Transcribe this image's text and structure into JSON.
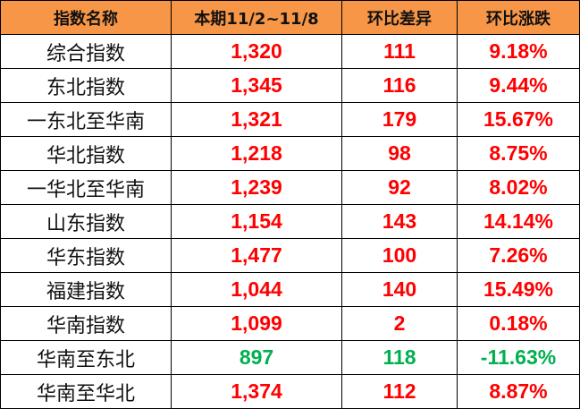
{
  "headers": [
    "指数名称",
    "本期11/2~11/8",
    "环比差异",
    "环比涨跌"
  ],
  "colors": {
    "header_bg": "#F79646",
    "up": "#FF0000",
    "down": "#00B050"
  },
  "rows": [
    {
      "name": "综合指数",
      "value": "1,320",
      "diff": "111",
      "pct": "9.18%",
      "trend": "up"
    },
    {
      "name": "东北指数",
      "value": "1,345",
      "diff": "116",
      "pct": "9.44%",
      "trend": "up"
    },
    {
      "name": "一东北至华南",
      "value": "1,321",
      "diff": "179",
      "pct": "15.67%",
      "trend": "up"
    },
    {
      "name": "华北指数",
      "value": "1,218",
      "diff": "98",
      "pct": "8.75%",
      "trend": "up"
    },
    {
      "name": "一华北至华南",
      "value": "1,239",
      "diff": "92",
      "pct": "8.02%",
      "trend": "up"
    },
    {
      "name": "山东指数",
      "value": "1,154",
      "diff": "143",
      "pct": "14.14%",
      "trend": "up"
    },
    {
      "name": "华东指数",
      "value": "1,477",
      "diff": "100",
      "pct": "7.26%",
      "trend": "up"
    },
    {
      "name": "福建指数",
      "value": "1,044",
      "diff": "140",
      "pct": "15.49%",
      "trend": "up"
    },
    {
      "name": "华南指数",
      "value": "1,099",
      "diff": "2",
      "pct": "0.18%",
      "trend": "up"
    },
    {
      "name": "华南至东北",
      "value": "897",
      "diff": "118",
      "pct": "-11.63%",
      "trend": "down"
    },
    {
      "name": "华南至华北",
      "value": "1,374",
      "diff": "112",
      "pct": "8.87%",
      "trend": "up"
    }
  ]
}
